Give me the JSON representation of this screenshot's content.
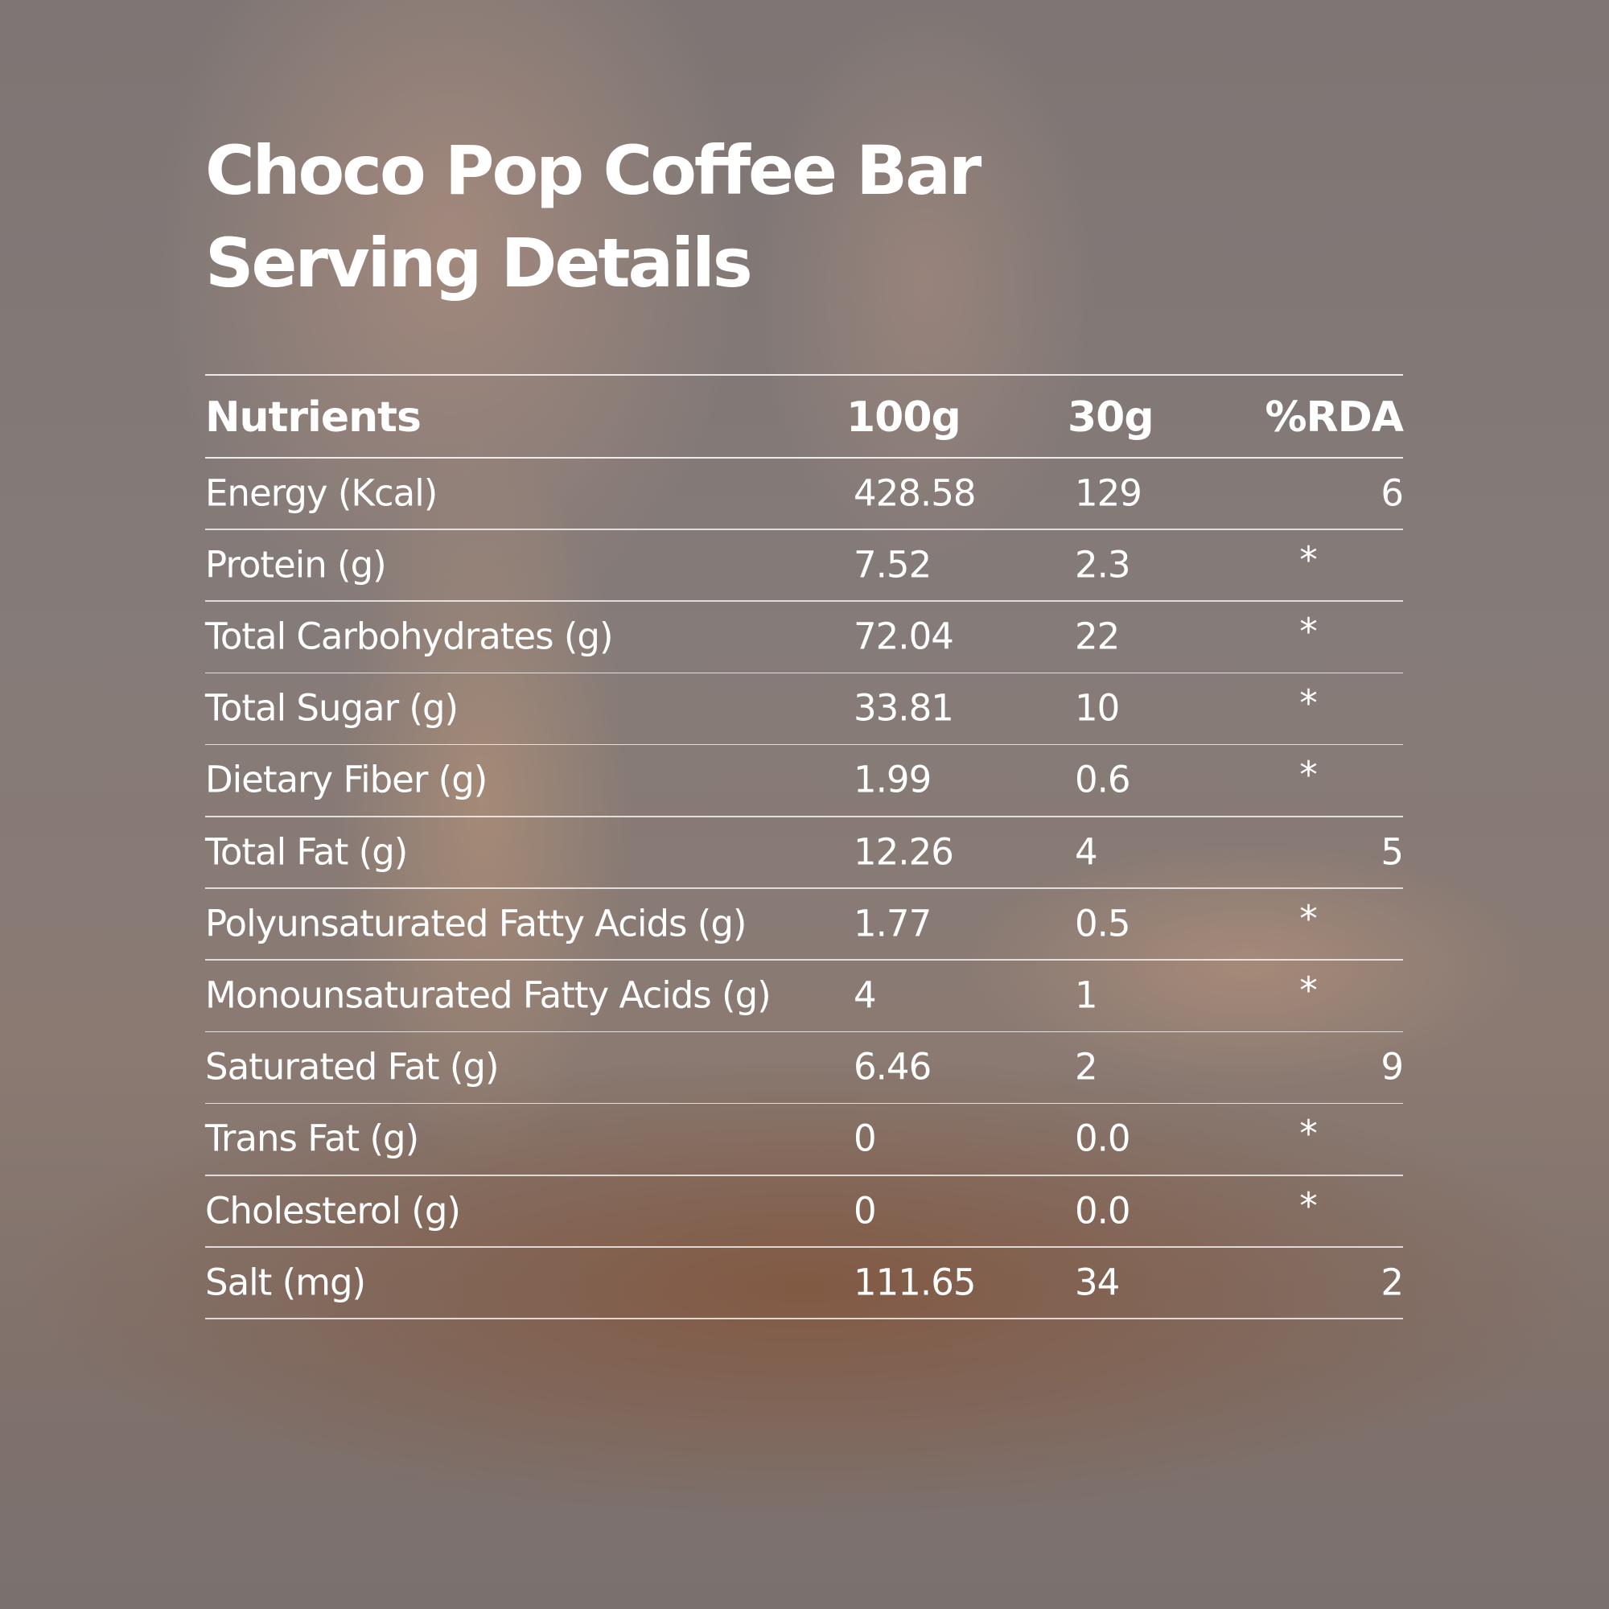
{
  "header": {
    "title_lines": [
      "Choco Pop Coffee Bar",
      "Serving Details"
    ]
  },
  "table": {
    "columns": [
      "Nutrients",
      "100g",
      "30g",
      "%RDA"
    ],
    "rows": [
      [
        "Energy (Kcal)",
        "428.58",
        "129",
        "6"
      ],
      [
        "Protein (g)",
        "7.52",
        "2.3",
        "*"
      ],
      [
        "Total Carbohydrates (g)",
        "72.04",
        "22",
        "*"
      ],
      [
        "Total Sugar (g)",
        "33.81",
        "10",
        "*"
      ],
      [
        "Dietary Fiber (g)",
        "1.99",
        "0.6",
        "*"
      ],
      [
        "Total Fat (g)",
        "12.26",
        "4",
        "5"
      ],
      [
        "Polyunsaturated Fatty Acids (g)",
        "1.77",
        "0.5",
        "*"
      ],
      [
        "Monounsaturated Fatty Acids (g)",
        "4",
        "1",
        "*"
      ],
      [
        "Saturated Fat (g)",
        "6.46",
        "2",
        "9"
      ],
      [
        "Trans Fat (g)",
        "0",
        "0.0",
        "*"
      ],
      [
        "Cholesterol (g)",
        "0",
        "0.0",
        "*"
      ],
      [
        "Salt (mg)",
        "111.65",
        "34",
        "2"
      ]
    ]
  }
}
